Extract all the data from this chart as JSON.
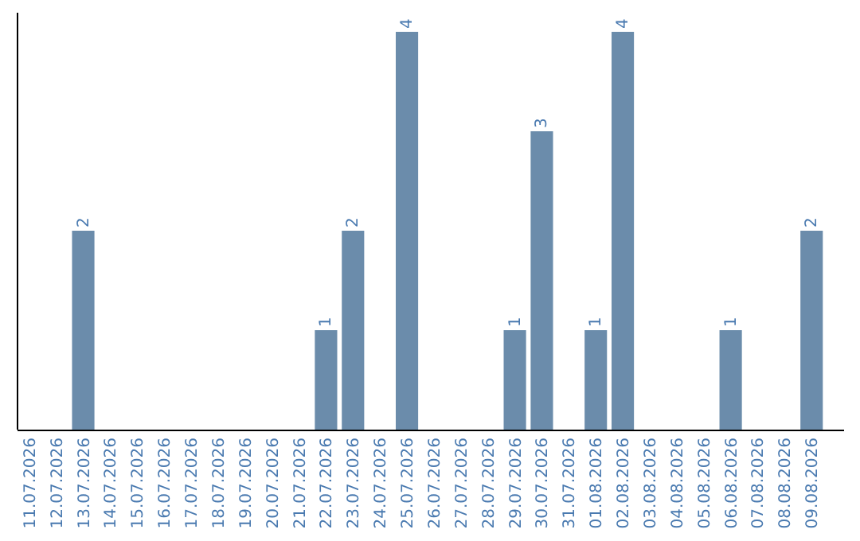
{
  "chart_data": {
    "type": "bar",
    "categories": [
      "11.07.2026",
      "12.07.2026",
      "13.07.2026",
      "14.07.2026",
      "15.07.2026",
      "16.07.2026",
      "17.07.2026",
      "18.07.2026",
      "19.07.2026",
      "20.07.2026",
      "21.07.2026",
      "22.07.2026",
      "23.07.2026",
      "24.07.2026",
      "25.07.2026",
      "26.07.2026",
      "27.07.2026",
      "28.07.2026",
      "29.07.2026",
      "30.07.2026",
      "31.07.2026",
      "01.08.2026",
      "02.08.2026",
      "03.08.2026",
      "04.08.2026",
      "05.08.2026",
      "06.08.2026",
      "07.08.2026",
      "08.08.2026",
      "09.08.2026"
    ],
    "values": [
      0,
      0,
      2,
      0,
      0,
      0,
      0,
      0,
      0,
      0,
      0,
      1,
      2,
      0,
      4,
      0,
      0,
      0,
      1,
      3,
      0,
      1,
      4,
      0,
      0,
      0,
      1,
      0,
      0,
      2
    ],
    "value_labels": [
      null,
      null,
      "2",
      null,
      null,
      null,
      null,
      null,
      null,
      null,
      null,
      "1",
      "2",
      null,
      "4",
      null,
      null,
      null,
      "1",
      "3",
      null,
      "1",
      "4",
      null,
      null,
      null,
      "1",
      null,
      null,
      "2"
    ],
    "color": "#6b8cab"
  }
}
